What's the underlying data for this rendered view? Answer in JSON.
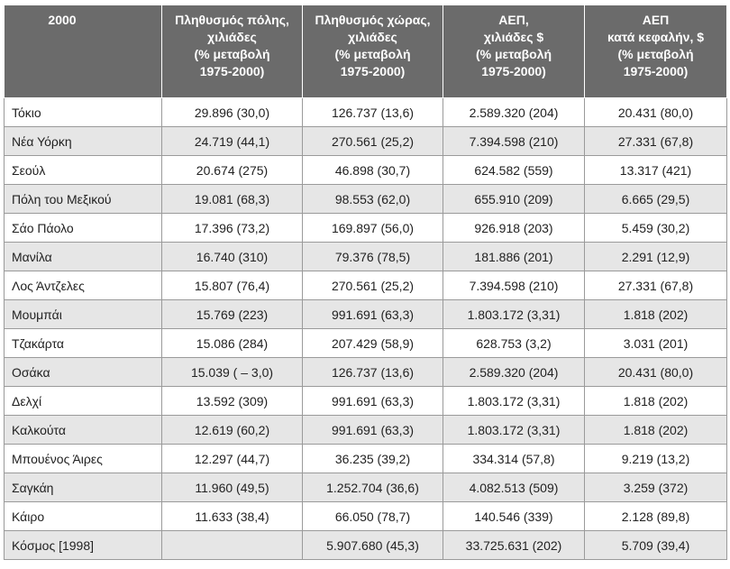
{
  "table": {
    "headers": [
      "2000",
      "Πληθυσμός πόλης,\nχιλιάδες\n(% μεταβολή\n1975-2000)",
      "Πληθυσμός χώρας,\nχιλιάδες\n(% μεταβολή\n1975-2000)",
      "ΑΕΠ,\nχιλιάδες $\n(% μεταβολή\n1975-2000)",
      "ΑΕΠ\nκατά κεφαλήν, $\n(% μεταβολή\n1975-2000)"
    ],
    "rows": [
      [
        "Τόκιο",
        "29.896 (30,0)",
        "126.737 (13,6)",
        "2.589.320 (204)",
        "20.431 (80,0)"
      ],
      [
        "Νέα Υόρκη",
        "24.719 (44,1)",
        "270.561 (25,2)",
        "7.394.598 (210)",
        "27.331 (67,8)"
      ],
      [
        "Σεούλ",
        "20.674 (275)",
        "46.898 (30,7)",
        "624.582 (559)",
        "13.317 (421)"
      ],
      [
        "Πόλη του Μεξικού",
        "19.081 (68,3)",
        "98.553 (62,0)",
        "655.910 (209)",
        "6.665 (29,5)"
      ],
      [
        "Σάο Πάολο",
        "17.396 (73,2)",
        "169.897 (56,0)",
        "926.918 (203)",
        "5.459 (30,2)"
      ],
      [
        "Μανίλα",
        "16.740 (310)",
        "79.376 (78,5)",
        "181.886 (201)",
        "2.291 (12,9)"
      ],
      [
        "Λος Άντζελες",
        "15.807 (76,4)",
        "270.561 (25,2)",
        "7.394.598 (210)",
        "27.331 (67,8)"
      ],
      [
        "Μουμπάι",
        "15.769 (223)",
        "991.691 (63,3)",
        "1.803.172 (3,31)",
        "1.818 (202)"
      ],
      [
        "Τζακάρτα",
        "15.086 (284)",
        "207.429 (58,9)",
        "628.753 (3,2)",
        "3.031 (201)"
      ],
      [
        "Οσάκα",
        "15.039 ( – 3,0)",
        "126.737 (13,6)",
        "2.589.320 (204)",
        "20.431 (80,0)"
      ],
      [
        "Δελχί",
        "13.592 (309)",
        "991.691 (63,3)",
        "1.803.172 (3,31)",
        "1.818 (202)"
      ],
      [
        "Καλκούτα",
        "12.619 (60,2)",
        "991.691 (63,3)",
        "1.803.172 (3,31)",
        "1.818 (202)"
      ],
      [
        "Μπουένος Άιρες",
        "12.297 (44,7)",
        "36.235 (39,2)",
        "334.314 (57,8)",
        "9.219 (13,2)"
      ],
      [
        "Σαγκάη",
        "11.960 (49,5)",
        "1.252.704 (36,6)",
        "4.082.513 (509)",
        "3.259 (372)"
      ],
      [
        "Κάιρο",
        "11.633 (38,4)",
        "66.050 (78,7)",
        "140.546 (339)",
        "2.128 (89,8)"
      ],
      [
        "Κόσμος [1998]",
        "",
        "5.907.680 (45,3)",
        "33.725.631 (202)",
        "5.709 (39,4)"
      ]
    ]
  }
}
